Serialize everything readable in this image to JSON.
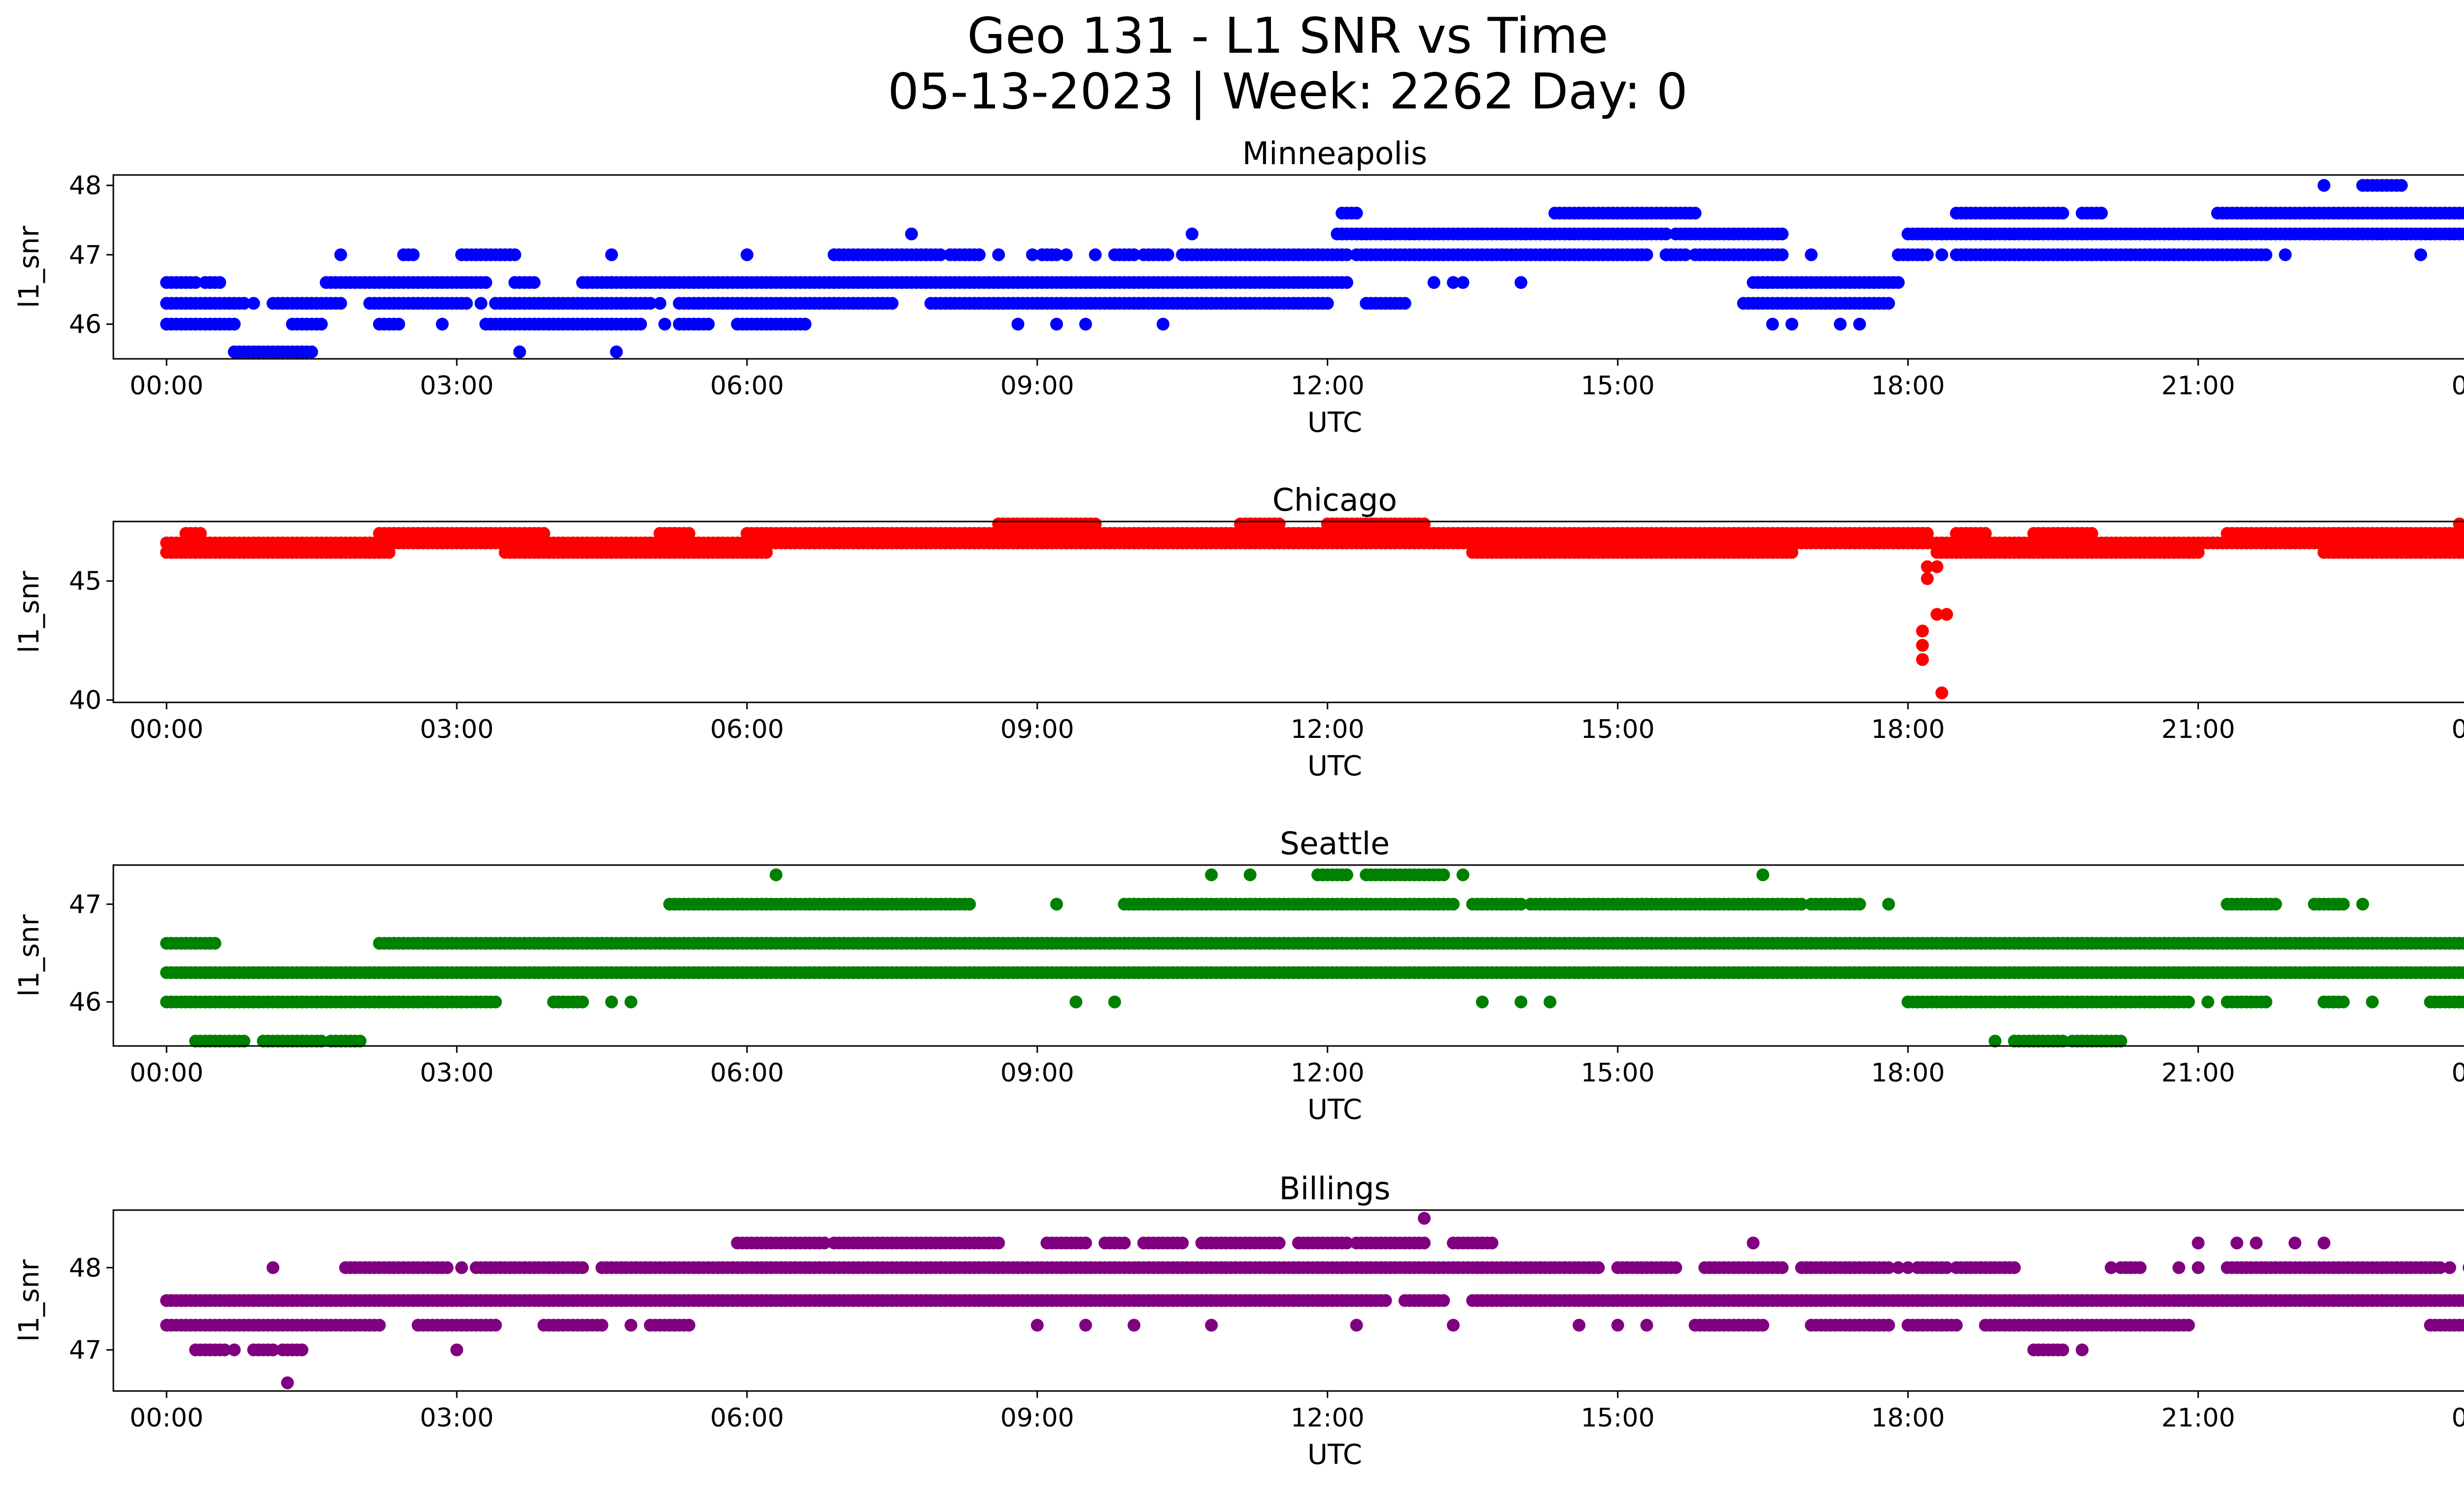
{
  "figure": {
    "title_line1": "Geo 131 - L1 SNR vs Time",
    "title_line2": "05-13-2023 | Week: 2262 Day: 0"
  },
  "chart_data": [
    {
      "type": "scatter",
      "title": "Minneapolis",
      "xlabel": "UTC",
      "ylabel": "l1_snr",
      "color": "#0000ff",
      "xlim": [
        -0.55,
        24.7
      ],
      "ylim": [
        45.5,
        48.15
      ],
      "xticks": [
        "00:00",
        "03:00",
        "06:00",
        "09:00",
        "12:00",
        "15:00",
        "18:00",
        "21:00",
        "00:00"
      ],
      "yticks": [
        46,
        47,
        48
      ],
      "series": [
        {
          "values_at": 46.0,
          "ranges": [
            [
              0.0,
              0.45
            ],
            [
              0.5,
              0.7
            ],
            [
              1.3,
              1.6
            ],
            [
              2.2,
              2.4
            ],
            [
              3.3,
              4.9
            ],
            [
              5.3,
              5.6
            ],
            [
              5.9,
              6.6
            ]
          ],
          "points": [
            2.85,
            5.15,
            8.8,
            9.2,
            9.5,
            10.3,
            16.6,
            16.8,
            17.3,
            17.5
          ]
        },
        {
          "values_at": 46.3,
          "ranges": [
            [
              0.0,
              0.8
            ],
            [
              1.1,
              1.8
            ],
            [
              2.1,
              3.1
            ],
            [
              3.4,
              5.0
            ],
            [
              5.3,
              7.5
            ],
            [
              7.9,
              12.0
            ],
            [
              12.4,
              12.8
            ],
            [
              16.3,
              17.8
            ]
          ],
          "points": [
            0.9,
            3.25,
            5.1
          ]
        },
        {
          "values_at": 46.6,
          "ranges": [
            [
              0.0,
              0.3
            ],
            [
              0.4,
              0.55
            ],
            [
              1.65,
              3.3
            ],
            [
              3.6,
              3.8
            ],
            [
              4.3,
              4.6
            ],
            [
              4.6,
              12.2
            ],
            [
              16.4,
              16.6
            ],
            [
              16.5,
              17.9
            ]
          ],
          "points": [
            4.6,
            13.1,
            13.3,
            13.4,
            14.0
          ]
        },
        {
          "values_at": 47.0,
          "ranges": [
            [
              2.45,
              2.55
            ],
            [
              3.05,
              3.6
            ],
            [
              6.9,
              8.0
            ],
            [
              8.1,
              8.4
            ],
            [
              9.05,
              9.2
            ],
            [
              9.8,
              10.0
            ],
            [
              10.1,
              10.35
            ],
            [
              10.5,
              12.2
            ],
            [
              12.3,
              15.3
            ],
            [
              15.5,
              15.7
            ],
            [
              15.8,
              16.7
            ],
            [
              17.9,
              18.2
            ],
            [
              18.5,
              21.7
            ]
          ],
          "points": [
            1.8,
            4.6,
            6.0,
            8.6,
            8.95,
            9.3,
            9.6,
            11.2,
            15.2,
            15.5,
            17.0,
            18.0,
            18.35,
            21.9,
            23.3
          ]
        },
        {
          "values_at": 47.3,
          "ranges": [
            [
              12.1,
              15.5
            ],
            [
              15.6,
              16.7
            ],
            [
              18.0,
              24.0
            ]
          ],
          "points": [
            7.7,
            10.6
          ]
        },
        {
          "values_at": 47.6,
          "ranges": [
            [
              12.15,
              12.3
            ],
            [
              14.35,
              15.8
            ],
            [
              18.5,
              19.6
            ],
            [
              19.8,
              20.0
            ],
            [
              21.2,
              24.0
            ]
          ],
          "points": []
        },
        {
          "values_at": 48.0,
          "ranges": [
            [
              22.7,
              23.1
            ]
          ],
          "points": [
            22.3
          ]
        },
        {
          "values_at": 45.6,
          "ranges": [
            [
              0.7,
              1.5
            ]
          ],
          "points": [
            3.65,
            4.65
          ]
        }
      ]
    },
    {
      "type": "scatter",
      "title": "Chicago",
      "xlabel": "UTC",
      "ylabel": "l1_snr",
      "color": "#ff0000",
      "xlim": [
        -0.55,
        24.7
      ],
      "ylim": [
        39.9,
        47.5
      ],
      "xticks": [
        "00:00",
        "03:00",
        "06:00",
        "09:00",
        "12:00",
        "15:00",
        "18:00",
        "21:00",
        "00:00"
      ],
      "yticks": [
        40,
        45
      ],
      "series": [
        {
          "values_at": 46.2,
          "ranges": [
            [
              0.0,
              2.3
            ],
            [
              3.5,
              6.2
            ],
            [
              13.5,
              16.8
            ],
            [
              18.3,
              21.0
            ],
            [
              22.3,
              23.9
            ]
          ],
          "points": []
        },
        {
          "values_at": 46.6,
          "ranges": [
            [
              0.0,
              24.0
            ]
          ],
          "points": []
        },
        {
          "values_at": 47.0,
          "ranges": [
            [
              0.2,
              0.35
            ],
            [
              2.2,
              3.9
            ],
            [
              5.1,
              5.4
            ],
            [
              6.0,
              18.2
            ],
            [
              18.5,
              18.8
            ],
            [
              19.3,
              19.9
            ],
            [
              21.3,
              23.9
            ]
          ],
          "points": []
        },
        {
          "values_at": 47.4,
          "ranges": [
            [
              8.6,
              9.6
            ],
            [
              11.1,
              11.5
            ],
            [
              12.0,
              13.0
            ]
          ],
          "points": [
            23.7
          ]
        },
        {
          "values_at": 45.6,
          "ranges": [],
          "points": [
            18.2,
            18.3
          ]
        },
        {
          "values_at": 45.1,
          "ranges": [],
          "points": [
            18.2
          ]
        },
        {
          "values_at": 43.6,
          "ranges": [],
          "points": [
            18.3,
            18.4
          ]
        },
        {
          "values_at": 42.9,
          "ranges": [],
          "points": [
            18.15
          ]
        },
        {
          "values_at": 42.3,
          "ranges": [],
          "points": [
            18.15
          ]
        },
        {
          "values_at": 41.7,
          "ranges": [],
          "points": [
            18.15
          ]
        },
        {
          "values_at": 40.3,
          "ranges": [],
          "points": [
            18.35
          ]
        }
      ]
    },
    {
      "type": "scatter",
      "title": "Seattle",
      "xlabel": "UTC",
      "ylabel": "l1_snr",
      "color": "#008000",
      "xlim": [
        -0.55,
        24.7
      ],
      "ylim": [
        45.55,
        47.4
      ],
      "xticks": [
        "00:00",
        "03:00",
        "06:00",
        "09:00",
        "12:00",
        "15:00",
        "18:00",
        "21:00",
        "00:00"
      ],
      "yticks": [
        46,
        47
      ],
      "series": [
        {
          "values_at": 47.0,
          "ranges": [
            [
              5.2,
              8.3
            ],
            [
              9.9,
              13.3
            ],
            [
              13.5,
              14.0
            ],
            [
              14.1,
              16.9
            ],
            [
              17.0,
              17.5
            ],
            [
              21.3,
              21.8
            ],
            [
              22.2,
              22.5
            ]
          ],
          "points": [
            9.2,
            10.9,
            17.8,
            22.7
          ]
        },
        {
          "values_at": 47.3,
          "ranges": [
            [
              11.9,
              12.2
            ],
            [
              12.4,
              13.2
            ]
          ],
          "points": [
            6.3,
            10.8,
            11.2,
            13.4,
            16.5
          ]
        },
        {
          "values_at": 46.6,
          "ranges": [
            [
              0.0,
              0.5
            ],
            [
              2.2,
              24.0
            ]
          ],
          "points": []
        },
        {
          "values_at": 46.3,
          "ranges": [
            [
              0.0,
              24.0
            ]
          ],
          "points": []
        },
        {
          "values_at": 46.0,
          "ranges": [
            [
              0.0,
              3.4
            ],
            [
              4.0,
              4.3
            ],
            [
              18.0,
              20.9
            ],
            [
              21.3,
              21.7
            ],
            [
              22.3,
              22.5
            ],
            [
              23.4,
              24.0
            ]
          ],
          "points": [
            4.6,
            4.8,
            9.4,
            9.8,
            13.6,
            14.0,
            14.3,
            21.1,
            22.8
          ]
        },
        {
          "values_at": 45.6,
          "ranges": [
            [
              0.3,
              0.8
            ],
            [
              1.0,
              1.6
            ],
            [
              1.7,
              2.0
            ],
            [
              19.1,
              19.6
            ],
            [
              19.7,
              20.2
            ]
          ],
          "points": [
            18.9
          ]
        }
      ]
    },
    {
      "type": "scatter",
      "title": "Billings",
      "xlabel": "UTC",
      "ylabel": "l1_snr",
      "color": "#800080",
      "xlim": [
        -0.55,
        24.7
      ],
      "ylim": [
        46.5,
        48.7
      ],
      "xticks": [
        "00:00",
        "03:00",
        "06:00",
        "09:00",
        "12:00",
        "15:00",
        "18:00",
        "21:00",
        "00:00"
      ],
      "yticks": [
        47,
        48
      ],
      "series": [
        {
          "values_at": 48.0,
          "ranges": [
            [
              1.85,
              2.9
            ],
            [
              3.2,
              4.3
            ],
            [
              4.5,
              14.8
            ],
            [
              15.0,
              15.6
            ],
            [
              15.9,
              16.7
            ],
            [
              16.9,
              17.8
            ],
            [
              18.1,
              18.4
            ],
            [
              18.5,
              19.1
            ],
            [
              20.2,
              20.4
            ],
            [
              21.3,
              23.5
            ]
          ],
          "points": [
            1.1,
            3.05,
            17.9,
            18.0,
            20.1,
            20.8,
            21.0,
            23.6,
            23.8
          ]
        },
        {
          "values_at": 48.3,
          "ranges": [
            [
              5.9,
              6.8
            ],
            [
              6.9,
              8.6
            ],
            [
              9.1,
              9.5
            ],
            [
              9.7,
              9.9
            ],
            [
              10.1,
              10.5
            ],
            [
              10.7,
              11.5
            ],
            [
              11.7,
              12.2
            ],
            [
              12.3,
              13.0
            ],
            [
              13.3,
              13.7
            ]
          ],
          "points": [
            16.4,
            21.0,
            21.4,
            21.6,
            22.0,
            22.3
          ]
        },
        {
          "values_at": 47.6,
          "ranges": [
            [
              0.0,
              12.6
            ],
            [
              12.8,
              13.2
            ],
            [
              13.5,
              24.0
            ]
          ],
          "points": []
        },
        {
          "values_at": 47.3,
          "ranges": [
            [
              0.0,
              2.2
            ],
            [
              2.6,
              3.4
            ],
            [
              3.9,
              4.5
            ],
            [
              5.0,
              5.4
            ],
            [
              15.8,
              16.5
            ],
            [
              17.0,
              17.8
            ],
            [
              18.0,
              18.5
            ],
            [
              18.8,
              20.9
            ],
            [
              23.4,
              24.0
            ]
          ],
          "points": [
            4.8,
            9.0,
            9.5,
            10.0,
            10.8,
            12.3,
            13.3,
            14.6,
            15.0,
            15.3,
            17.8
          ]
        },
        {
          "values_at": 47.0,
          "ranges": [
            [
              0.3,
              0.6
            ],
            [
              0.9,
              1.1
            ],
            [
              1.2,
              1.4
            ],
            [
              19.3,
              19.6
            ]
          ],
          "points": [
            0.7,
            3.0,
            19.8
          ]
        },
        {
          "values_at": 48.6,
          "ranges": [],
          "points": [
            13.0
          ]
        },
        {
          "values_at": 46.6,
          "ranges": [],
          "points": [
            1.25
          ]
        }
      ]
    }
  ]
}
